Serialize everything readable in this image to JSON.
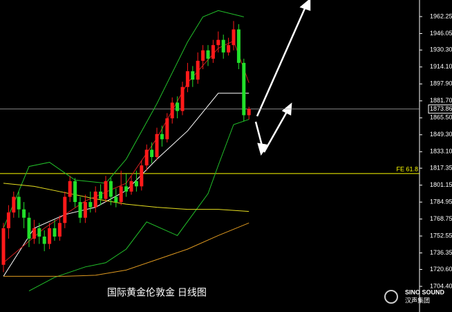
{
  "chart_data": {
    "type": "candlestick",
    "title": "国际黄金伦敦金 日线图",
    "brand": "SINO SOUND",
    "brand_sub": "汉声集团",
    "up_color": "#ff1a1a",
    "down_color": "#22e02a",
    "ylim": [
      1679.9,
      1978.1
    ],
    "yticks": [
      1962.25,
      1946.05,
      {
        "value": 1930.3,
        "label": "1930.30"
      },
      {
        "value": 1914.1,
        "label": "1914.10"
      },
      {
        "value": 1897.9,
        "label": "1897.90"
      },
      {
        "value": 1881.7,
        "label": "1881.70"
      },
      {
        "value": 1865.5,
        "label": "1865.50"
      },
      {
        "value": 1849.3,
        "label": "1849.30"
      },
      {
        "value": 1833.1,
        "label": "1833.10"
      },
      1817.35,
      1801.15,
      1784.95,
      1768.75,
      1752.55,
      1736.35,
      {
        "value": 1720.6,
        "label": "1720.60"
      },
      {
        "value": 1704.4,
        "label": "1704.40"
      }
    ],
    "current_price": 1873.86,
    "fe_level": {
      "label": "FE 61.8",
      "value": 1812.2,
      "color": "#ffff00"
    },
    "open": [
      1725,
      1760,
      1775,
      1790,
      1778,
      1770,
      1750,
      1760,
      1752,
      1745,
      1760,
      1752,
      1765,
      1790,
      1805,
      1785,
      1770,
      1785,
      1780,
      1795,
      1788,
      1805,
      1790,
      1785,
      1800,
      1795,
      1805,
      1800,
      1820,
      1835,
      1828,
      1850,
      1845,
      1865,
      1880,
      1872,
      1895,
      1910,
      1902,
      1920,
      1930,
      1922,
      1935,
      1940,
      1928,
      1935,
      1950,
      1918,
      1868
    ],
    "high": [
      1765,
      1782,
      1795,
      1795,
      1785,
      1775,
      1768,
      1765,
      1758,
      1765,
      1768,
      1772,
      1795,
      1810,
      1808,
      1790,
      1792,
      1795,
      1800,
      1802,
      1810,
      1808,
      1798,
      1815,
      1812,
      1810,
      1815,
      1825,
      1840,
      1842,
      1856,
      1858,
      1870,
      1885,
      1886,
      1900,
      1918,
      1915,
      1928,
      1935,
      1935,
      1940,
      1948,
      1945,
      1942,
      1958,
      1955,
      1922,
      1876
    ],
    "low": [
      1718,
      1750,
      1770,
      1770,
      1760,
      1742,
      1745,
      1745,
      1738,
      1740,
      1748,
      1748,
      1760,
      1785,
      1780,
      1765,
      1765,
      1775,
      1775,
      1782,
      1785,
      1782,
      1780,
      1782,
      1790,
      1792,
      1795,
      1796,
      1815,
      1822,
      1825,
      1838,
      1842,
      1860,
      1865,
      1868,
      1890,
      1895,
      1898,
      1912,
      1915,
      1918,
      1928,
      1922,
      1925,
      1930,
      1912,
      1862,
      1864
    ],
    "close": [
      1760,
      1775,
      1790,
      1778,
      1770,
      1750,
      1760,
      1752,
      1745,
      1760,
      1752,
      1765,
      1790,
      1805,
      1785,
      1770,
      1785,
      1780,
      1795,
      1788,
      1805,
      1790,
      1785,
      1800,
      1795,
      1805,
      1800,
      1820,
      1835,
      1828,
      1850,
      1845,
      1865,
      1880,
      1872,
      1895,
      1910,
      1902,
      1920,
      1930,
      1922,
      1935,
      1940,
      1928,
      1935,
      1950,
      1918,
      1868,
      1874
    ],
    "lines": [
      {
        "color": "#22c02a",
        "x": [
          0,
          5,
          9,
          14,
          20,
          24,
          30,
          36,
          39,
          42,
          47
        ],
        "values": [
          1760,
          1819,
          1823,
          1806,
          1803,
          1826,
          1879,
          1938,
          1962,
          1968,
          1962
        ]
      },
      {
        "color": "#22c02a",
        "x": [
          5,
          10,
          16,
          20,
          24,
          28,
          34,
          40,
          42,
          45,
          48
        ],
        "values": [
          1700,
          1713,
          1723,
          1727,
          1740,
          1766,
          1753,
          1793,
          1820,
          1859,
          1864
        ]
      },
      {
        "color": "#ffffff",
        "x": [
          0,
          6,
          12,
          18,
          24,
          30,
          36,
          42,
          48
        ],
        "values": [
          1714,
          1760,
          1773,
          1780,
          1796,
          1826,
          1853,
          1889,
          1889
        ]
      },
      {
        "color": "#e8e020",
        "x": [
          0,
          6,
          12,
          18,
          24,
          30,
          36,
          42,
          48
        ],
        "values": [
          1803,
          1800,
          1794,
          1788,
          1783,
          1780,
          1778,
          1778,
          1776
        ]
      },
      {
        "color": "#e09a20",
        "x": [
          0,
          12,
          18,
          24,
          30,
          36,
          42,
          48
        ],
        "values": [
          1714,
          1714,
          1715,
          1720,
          1730,
          1740,
          1753,
          1765
        ]
      },
      {
        "color": "#d02020",
        "x": [
          0,
          8,
          16,
          24,
          30,
          36,
          42,
          45,
          48
        ],
        "values": [
          1727,
          1760,
          1786,
          1803,
          1846,
          1899,
          1932,
          1939,
          1899
        ]
      }
    ]
  }
}
